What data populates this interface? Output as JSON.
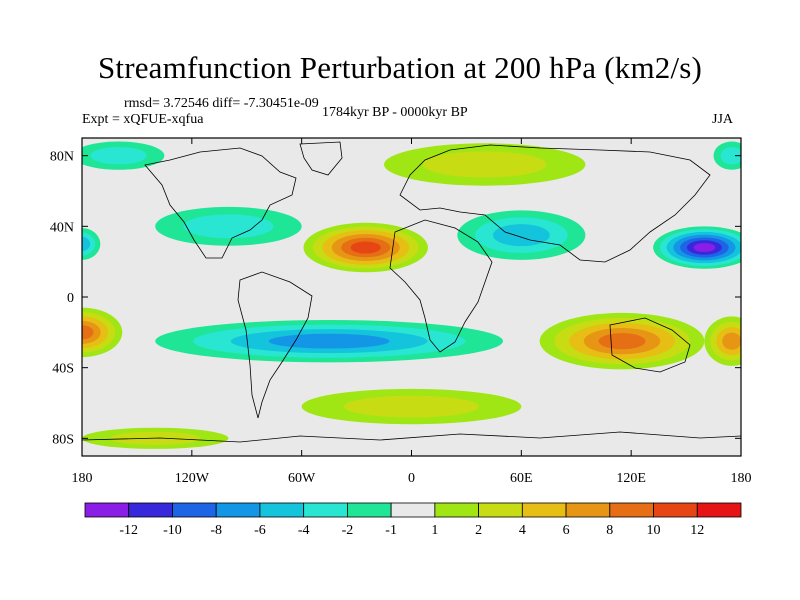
{
  "chart_data": {
    "type": "heatmap",
    "title": "Streamfunction Perturbation at 200 hPa (km2/s)",
    "stats_text": "rmsd= 3.72546 diff= -7.30451e-09",
    "experiment_text": "Expt = xQFUE-xqfua",
    "period_text": "1784kyr BP - 0000kyr BP",
    "season_text": "JJA",
    "xlim": [
      -180,
      180
    ],
    "ylim": [
      -90,
      90
    ],
    "x_ticks": [
      {
        "value": -180,
        "label": "180"
      },
      {
        "value": -120,
        "label": "120W"
      },
      {
        "value": -60,
        "label": "60W"
      },
      {
        "value": 0,
        "label": "0"
      },
      {
        "value": 60,
        "label": "60E"
      },
      {
        "value": 120,
        "label": "120E"
      },
      {
        "value": 180,
        "label": "180"
      }
    ],
    "y_ticks": [
      {
        "value": 80,
        "label": "80N"
      },
      {
        "value": 40,
        "label": "40N"
      },
      {
        "value": 0,
        "label": "0"
      },
      {
        "value": -40,
        "label": "40S"
      },
      {
        "value": -80,
        "label": "80S"
      }
    ],
    "colorbar": {
      "colors": [
        "#8a1ee6",
        "#3828dc",
        "#1e64e6",
        "#1496e6",
        "#14c3dc",
        "#28e6d2",
        "#1ee696",
        "#e9e9e9",
        "#a0e614",
        "#c8dc14",
        "#e6be14",
        "#e69614",
        "#e66e14",
        "#e64614",
        "#e61414"
      ],
      "labels": [
        "-12",
        "-10",
        "-8",
        "-6",
        "-4",
        "-2",
        "-1",
        "1",
        "2",
        "4",
        "6",
        "8",
        "10",
        "12"
      ]
    },
    "field_features": [
      {
        "lon": -25,
        "lat": 28,
        "value": 11,
        "rx": 34,
        "ry": 14
      },
      {
        "lon": 160,
        "lat": 28,
        "value": -12,
        "rx": 28,
        "ry": 12
      },
      {
        "lon": 115,
        "lat": -25,
        "value": 9,
        "rx": 45,
        "ry": 16
      },
      {
        "lon": -180,
        "lat": -20,
        "value": 8,
        "rx": 22,
        "ry": 14
      },
      {
        "lon": 175,
        "lat": -25,
        "value": 7,
        "rx": 15,
        "ry": 14
      },
      {
        "lon": -45,
        "lat": -25,
        "value": -7,
        "rx": 95,
        "ry": 12
      },
      {
        "lon": 60,
        "lat": 35,
        "value": -4,
        "rx": 35,
        "ry": 14
      },
      {
        "lon": 40,
        "lat": 75,
        "value": 3,
        "rx": 55,
        "ry": 12
      },
      {
        "lon": -100,
        "lat": 40,
        "value": -3,
        "rx": 40,
        "ry": 11
      },
      {
        "lon": -180,
        "lat": 30,
        "value": -4,
        "rx": 10,
        "ry": 9
      },
      {
        "lon": -160,
        "lat": 80,
        "value": -2,
        "rx": 25,
        "ry": 8
      },
      {
        "lon": 0,
        "lat": -62,
        "value": 3,
        "rx": 60,
        "ry": 10
      },
      {
        "lon": -140,
        "lat": -80,
        "value": 2,
        "rx": 40,
        "ry": 6
      },
      {
        "lon": 175,
        "lat": 80,
        "value": -2,
        "rx": 10,
        "ry": 8
      }
    ]
  }
}
